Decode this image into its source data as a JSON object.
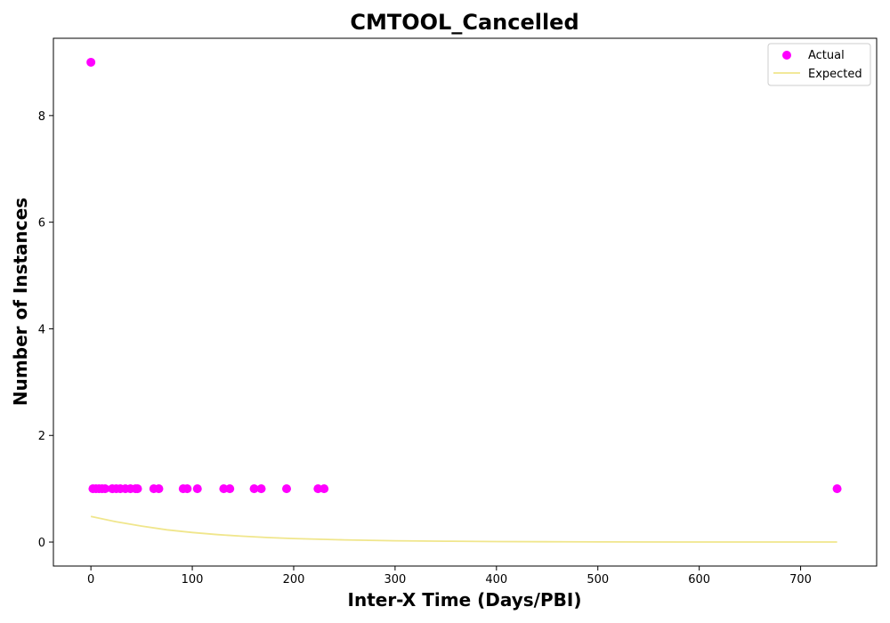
{
  "chart_data": {
    "type": "scatter",
    "title": "CMTOOL_Cancelled",
    "xlabel": "Inter-X Time (Days/PBI)",
    "ylabel": "Number of Instances",
    "xlim": [
      -37,
      775
    ],
    "ylim": [
      -0.45,
      9.45
    ],
    "x_ticks": [
      0,
      100,
      200,
      300,
      400,
      500,
      600,
      700
    ],
    "y_ticks": [
      0,
      2,
      4,
      6,
      8
    ],
    "grid": false,
    "legend_position": "top-right",
    "series": [
      {
        "name": "Actual",
        "kind": "scatter",
        "color": "#ff00ff",
        "points": [
          [
            0,
            9
          ],
          [
            2,
            1
          ],
          [
            5,
            1
          ],
          [
            8,
            1
          ],
          [
            11,
            1
          ],
          [
            14,
            1
          ],
          [
            21,
            1
          ],
          [
            25,
            1
          ],
          [
            29,
            1
          ],
          [
            34,
            1
          ],
          [
            39,
            1
          ],
          [
            44,
            1
          ],
          [
            46,
            1
          ],
          [
            62,
            1
          ],
          [
            67,
            1
          ],
          [
            91,
            1
          ],
          [
            95,
            1
          ],
          [
            105,
            1
          ],
          [
            131,
            1
          ],
          [
            137,
            1
          ],
          [
            161,
            1
          ],
          [
            168,
            1
          ],
          [
            193,
            1
          ],
          [
            224,
            1
          ],
          [
            230,
            1
          ],
          [
            736,
            1
          ]
        ]
      },
      {
        "name": "Expected",
        "kind": "line",
        "color": "#f0e68c",
        "points": [
          [
            0,
            0.48
          ],
          [
            25,
            0.38
          ],
          [
            50,
            0.3
          ],
          [
            75,
            0.23
          ],
          [
            100,
            0.18
          ],
          [
            125,
            0.14
          ],
          [
            150,
            0.11
          ],
          [
            175,
            0.085
          ],
          [
            200,
            0.066
          ],
          [
            250,
            0.04
          ],
          [
            300,
            0.024
          ],
          [
            350,
            0.015
          ],
          [
            400,
            0.009
          ],
          [
            450,
            0.005
          ],
          [
            500,
            0.003
          ],
          [
            600,
            0.001
          ],
          [
            700,
            0.0004
          ],
          [
            736,
            0.0003
          ]
        ]
      }
    ]
  }
}
